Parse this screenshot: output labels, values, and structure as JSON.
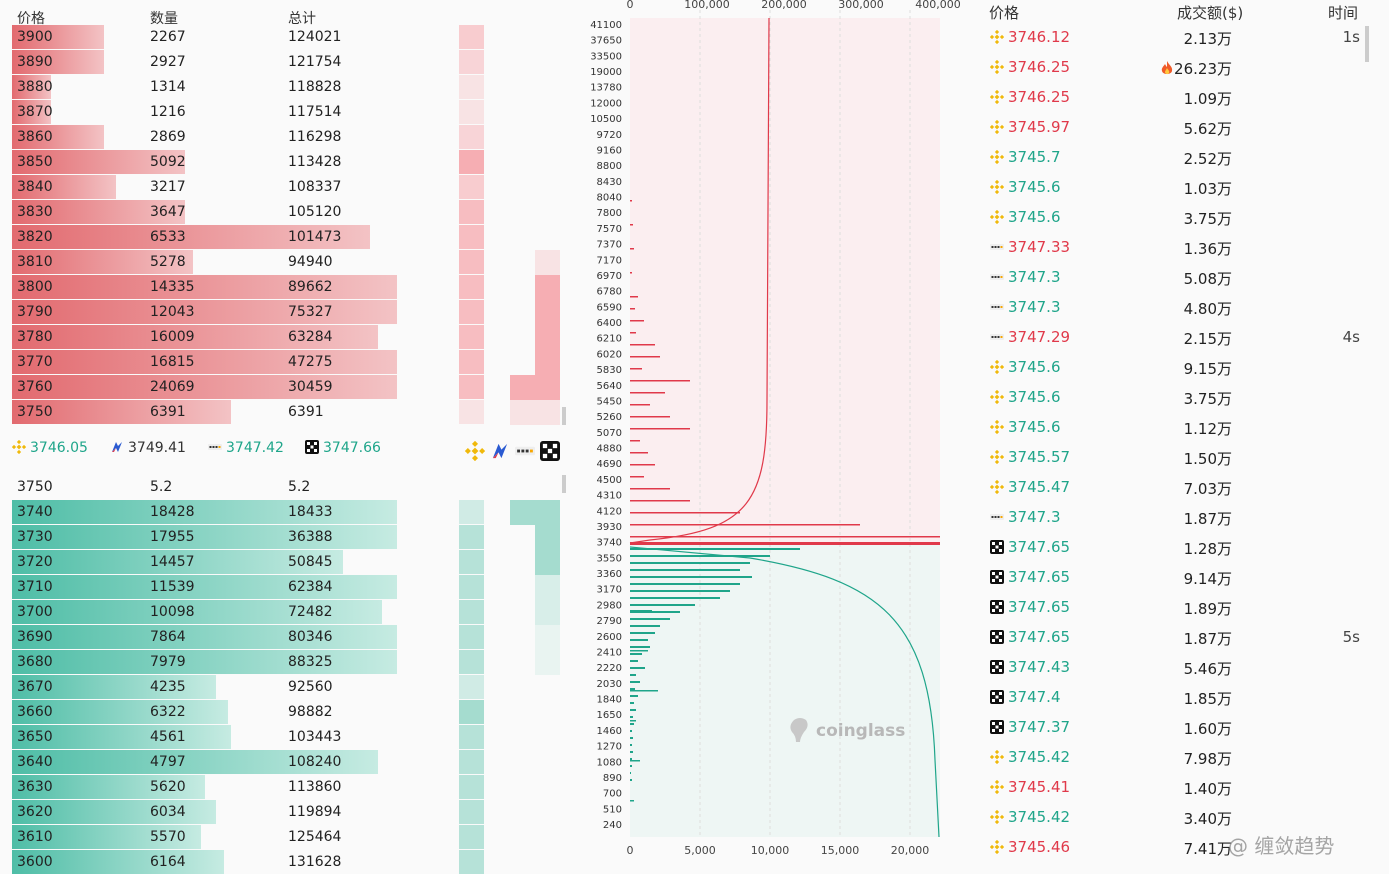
{
  "orderbook": {
    "headers": {
      "price": "价格",
      "qty": "数量",
      "total": "总计"
    },
    "asks": [
      {
        "price": "3900",
        "qty": "2267",
        "total": "124021",
        "w": 0.24,
        "m": 0.6
      },
      {
        "price": "3890",
        "qty": "2927",
        "total": "121754",
        "w": 0.24,
        "m": 0.5
      },
      {
        "price": "3880",
        "qty": "1314",
        "total": "118828",
        "w": 0.1,
        "m": 0.3
      },
      {
        "price": "3870",
        "qty": "1216",
        "total": "117514",
        "w": 0.1,
        "m": 0.3
      },
      {
        "price": "3860",
        "qty": "2869",
        "total": "116298",
        "w": 0.24,
        "m": 0.5
      },
      {
        "price": "3850",
        "qty": "5092",
        "total": "113428",
        "w": 0.45,
        "m": 1
      },
      {
        "price": "3840",
        "qty": "3217",
        "total": "108337",
        "w": 0.27,
        "m": 0.6
      },
      {
        "price": "3830",
        "qty": "3647",
        "total": "105120",
        "w": 0.45,
        "m": 0.8
      },
      {
        "price": "3820",
        "qty": "6533",
        "total": "101473",
        "w": 0.93,
        "m": 0.8
      },
      {
        "price": "3810",
        "qty": "5278",
        "total": "94940",
        "w": 0.47,
        "m": 0.8
      },
      {
        "price": "3800",
        "qty": "14335",
        "total": "89662",
        "w": 1,
        "m": 0.8
      },
      {
        "price": "3790",
        "qty": "12043",
        "total": "75327",
        "w": 1,
        "m": 0.8
      },
      {
        "price": "3780",
        "qty": "16009",
        "total": "63284",
        "w": 0.95,
        "m": 0.8
      },
      {
        "price": "3770",
        "qty": "16815",
        "total": "47275",
        "w": 1,
        "m": 0.8
      },
      {
        "price": "3760",
        "qty": "24069",
        "total": "30459",
        "w": 1,
        "m": 0.8
      },
      {
        "price": "3750",
        "qty": "6391",
        "total": "6391",
        "w": 0.57,
        "m": 0.3
      }
    ],
    "exchanges": [
      {
        "icon": "binance-icon",
        "price": "3746.05",
        "color": "#1fa58a"
      },
      {
        "icon": "huobi-icon",
        "price": "3749.41",
        "color": "#333333"
      },
      {
        "icon": "bybit-icon",
        "price": "3747.42",
        "color": "#1fa58a"
      },
      {
        "icon": "okx-icon",
        "price": "3747.66",
        "color": "#1fa58a"
      }
    ],
    "mid": {
      "price": "3750",
      "qty": "5.2",
      "total": "5.2"
    },
    "bids": [
      {
        "price": "3740",
        "qty": "18428",
        "total": "18433",
        "w": 1,
        "m": 0.5
      },
      {
        "price": "3730",
        "qty": "17955",
        "total": "36388",
        "w": 1,
        "m": 0.8
      },
      {
        "price": "3720",
        "qty": "14457",
        "total": "50845",
        "w": 0.86,
        "m": 0.8
      },
      {
        "price": "3710",
        "qty": "11539",
        "total": "62384",
        "w": 1,
        "m": 0.8
      },
      {
        "price": "3700",
        "qty": "10098",
        "total": "72482",
        "w": 0.96,
        "m": 0.8
      },
      {
        "price": "3690",
        "qty": "7864",
        "total": "80346",
        "w": 1,
        "m": 0.8
      },
      {
        "price": "3680",
        "qty": "7979",
        "total": "88325",
        "w": 1,
        "m": 0.8
      },
      {
        "price": "3670",
        "qty": "4235",
        "total": "92560",
        "w": 0.53,
        "m": 0.5
      },
      {
        "price": "3660",
        "qty": "6322",
        "total": "98882",
        "w": 0.56,
        "m": 1
      },
      {
        "price": "3650",
        "qty": "4561",
        "total": "103443",
        "w": 0.57,
        "m": 0.8
      },
      {
        "price": "3640",
        "qty": "4797",
        "total": "108240",
        "w": 0.95,
        "m": 0.8
      },
      {
        "price": "3630",
        "qty": "5620",
        "total": "113860",
        "w": 0.5,
        "m": 0.8
      },
      {
        "price": "3620",
        "qty": "6034",
        "total": "119894",
        "w": 0.53,
        "m": 0.8
      },
      {
        "price": "3610",
        "qty": "5570",
        "total": "125464",
        "w": 0.49,
        "m": 0.8
      },
      {
        "price": "3600",
        "qty": "6164",
        "total": "131628",
        "w": 0.55,
        "m": 0.8
      }
    ]
  },
  "depth": {
    "top_axis": [
      "0",
      "100,000",
      "200,000",
      "300,000",
      "400,000"
    ],
    "bottom_axis": [
      "0",
      "5,000",
      "10,000",
      "15,000",
      "20,000"
    ],
    "price_labels": [
      "41100",
      "37650",
      "33500",
      "19000",
      "13780",
      "12000",
      "10500",
      "9720",
      "9160",
      "8800",
      "8430",
      "8040",
      "7800",
      "7570",
      "7370",
      "7170",
      "6970",
      "6780",
      "6590",
      "6400",
      "6210",
      "6020",
      "5830",
      "5640",
      "5450",
      "5260",
      "5070",
      "4880",
      "4690",
      "4500",
      "4310",
      "4120",
      "3930",
      "3740",
      "3550",
      "3360",
      "3170",
      "2980",
      "2790",
      "2600",
      "2410",
      "2220",
      "2030",
      "1840",
      "1650",
      "1460",
      "1270",
      "1080",
      "890",
      "700",
      "510",
      "240"
    ],
    "watermark": "coinglass",
    "ask_color": "#e0394a",
    "bid_color": "#1fa58a"
  },
  "trades": {
    "headers": {
      "price": "价格",
      "amount": "成交额($)",
      "time": "时间"
    },
    "rows": [
      {
        "ex": "binance-icon",
        "price": "3746.12",
        "side": "dn",
        "amount": "2.13万",
        "time": "1s"
      },
      {
        "ex": "binance-icon",
        "price": "3746.25",
        "side": "dn",
        "amount": "26.23万",
        "time": "",
        "fire": true
      },
      {
        "ex": "binance-icon",
        "price": "3746.25",
        "side": "dn",
        "amount": "1.09万",
        "time": ""
      },
      {
        "ex": "binance-icon",
        "price": "3745.97",
        "side": "dn",
        "amount": "5.62万",
        "time": ""
      },
      {
        "ex": "binance-icon",
        "price": "3745.7",
        "side": "up",
        "amount": "2.52万",
        "time": ""
      },
      {
        "ex": "binance-icon",
        "price": "3745.6",
        "side": "up",
        "amount": "1.03万",
        "time": ""
      },
      {
        "ex": "binance-icon",
        "price": "3745.6",
        "side": "up",
        "amount": "3.75万",
        "time": ""
      },
      {
        "ex": "bybit-icon",
        "price": "3747.33",
        "side": "dn",
        "amount": "1.36万",
        "time": ""
      },
      {
        "ex": "bybit-icon",
        "price": "3747.3",
        "side": "up",
        "amount": "5.08万",
        "time": ""
      },
      {
        "ex": "bybit-icon",
        "price": "3747.3",
        "side": "up",
        "amount": "4.80万",
        "time": ""
      },
      {
        "ex": "bybit-icon",
        "price": "3747.29",
        "side": "dn",
        "amount": "2.15万",
        "time": "4s"
      },
      {
        "ex": "binance-icon",
        "price": "3745.6",
        "side": "up",
        "amount": "9.15万",
        "time": ""
      },
      {
        "ex": "binance-icon",
        "price": "3745.6",
        "side": "up",
        "amount": "3.75万",
        "time": ""
      },
      {
        "ex": "binance-icon",
        "price": "3745.6",
        "side": "up",
        "amount": "1.12万",
        "time": ""
      },
      {
        "ex": "binance-icon",
        "price": "3745.57",
        "side": "up",
        "amount": "1.50万",
        "time": ""
      },
      {
        "ex": "binance-icon",
        "price": "3745.47",
        "side": "up",
        "amount": "7.03万",
        "time": ""
      },
      {
        "ex": "bybit-icon",
        "price": "3747.3",
        "side": "up",
        "amount": "1.87万",
        "time": ""
      },
      {
        "ex": "okx-icon",
        "price": "3747.65",
        "side": "up",
        "amount": "1.28万",
        "time": ""
      },
      {
        "ex": "okx-icon",
        "price": "3747.65",
        "side": "up",
        "amount": "9.14万",
        "time": ""
      },
      {
        "ex": "okx-icon",
        "price": "3747.65",
        "side": "up",
        "amount": "1.89万",
        "time": ""
      },
      {
        "ex": "okx-icon",
        "price": "3747.65",
        "side": "up",
        "amount": "1.87万",
        "time": "5s"
      },
      {
        "ex": "okx-icon",
        "price": "3747.43",
        "side": "up",
        "amount": "5.46万",
        "time": ""
      },
      {
        "ex": "okx-icon",
        "price": "3747.4",
        "side": "up",
        "amount": "1.85万",
        "time": ""
      },
      {
        "ex": "okx-icon",
        "price": "3747.37",
        "side": "up",
        "amount": "1.60万",
        "time": ""
      },
      {
        "ex": "binance-icon",
        "price": "3745.42",
        "side": "up",
        "amount": "7.98万",
        "time": ""
      },
      {
        "ex": "binance-icon",
        "price": "3745.41",
        "side": "dn",
        "amount": "1.40万",
        "time": ""
      },
      {
        "ex": "binance-icon",
        "price": "3745.42",
        "side": "up",
        "amount": "3.40万",
        "time": ""
      },
      {
        "ex": "binance-icon",
        "price": "3745.46",
        "side": "dn",
        "amount": "7.41万",
        "time": ""
      }
    ],
    "watermark": "@ 缠敛趋势"
  }
}
